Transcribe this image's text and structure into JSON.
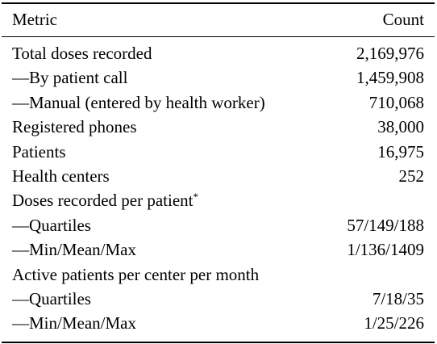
{
  "table": {
    "headers": {
      "metric": "Metric",
      "count": "Count"
    },
    "rows": [
      {
        "metric": "Total doses recorded",
        "count": "2,169,976"
      },
      {
        "metric": "—By patient call",
        "count": "1,459,908"
      },
      {
        "metric": "—Manual (entered by health worker)",
        "count": "710,068"
      },
      {
        "metric": "Registered phones",
        "count": "38,000"
      },
      {
        "metric": "Patients",
        "count": "16,975"
      },
      {
        "metric": "Health centers",
        "count": "252"
      },
      {
        "metric": "Doses recorded per patient",
        "mark": "*",
        "count": ""
      },
      {
        "metric": "—Quartiles",
        "count": "57/149/188"
      },
      {
        "metric": "—Min/Mean/Max",
        "count": "1/136/1409"
      },
      {
        "metric": "Active patients per center per month",
        "count": ""
      },
      {
        "metric": "—Quartiles",
        "count": "7/18/35"
      },
      {
        "metric": "—Min/Mean/Max",
        "count": "1/25/226"
      }
    ]
  }
}
